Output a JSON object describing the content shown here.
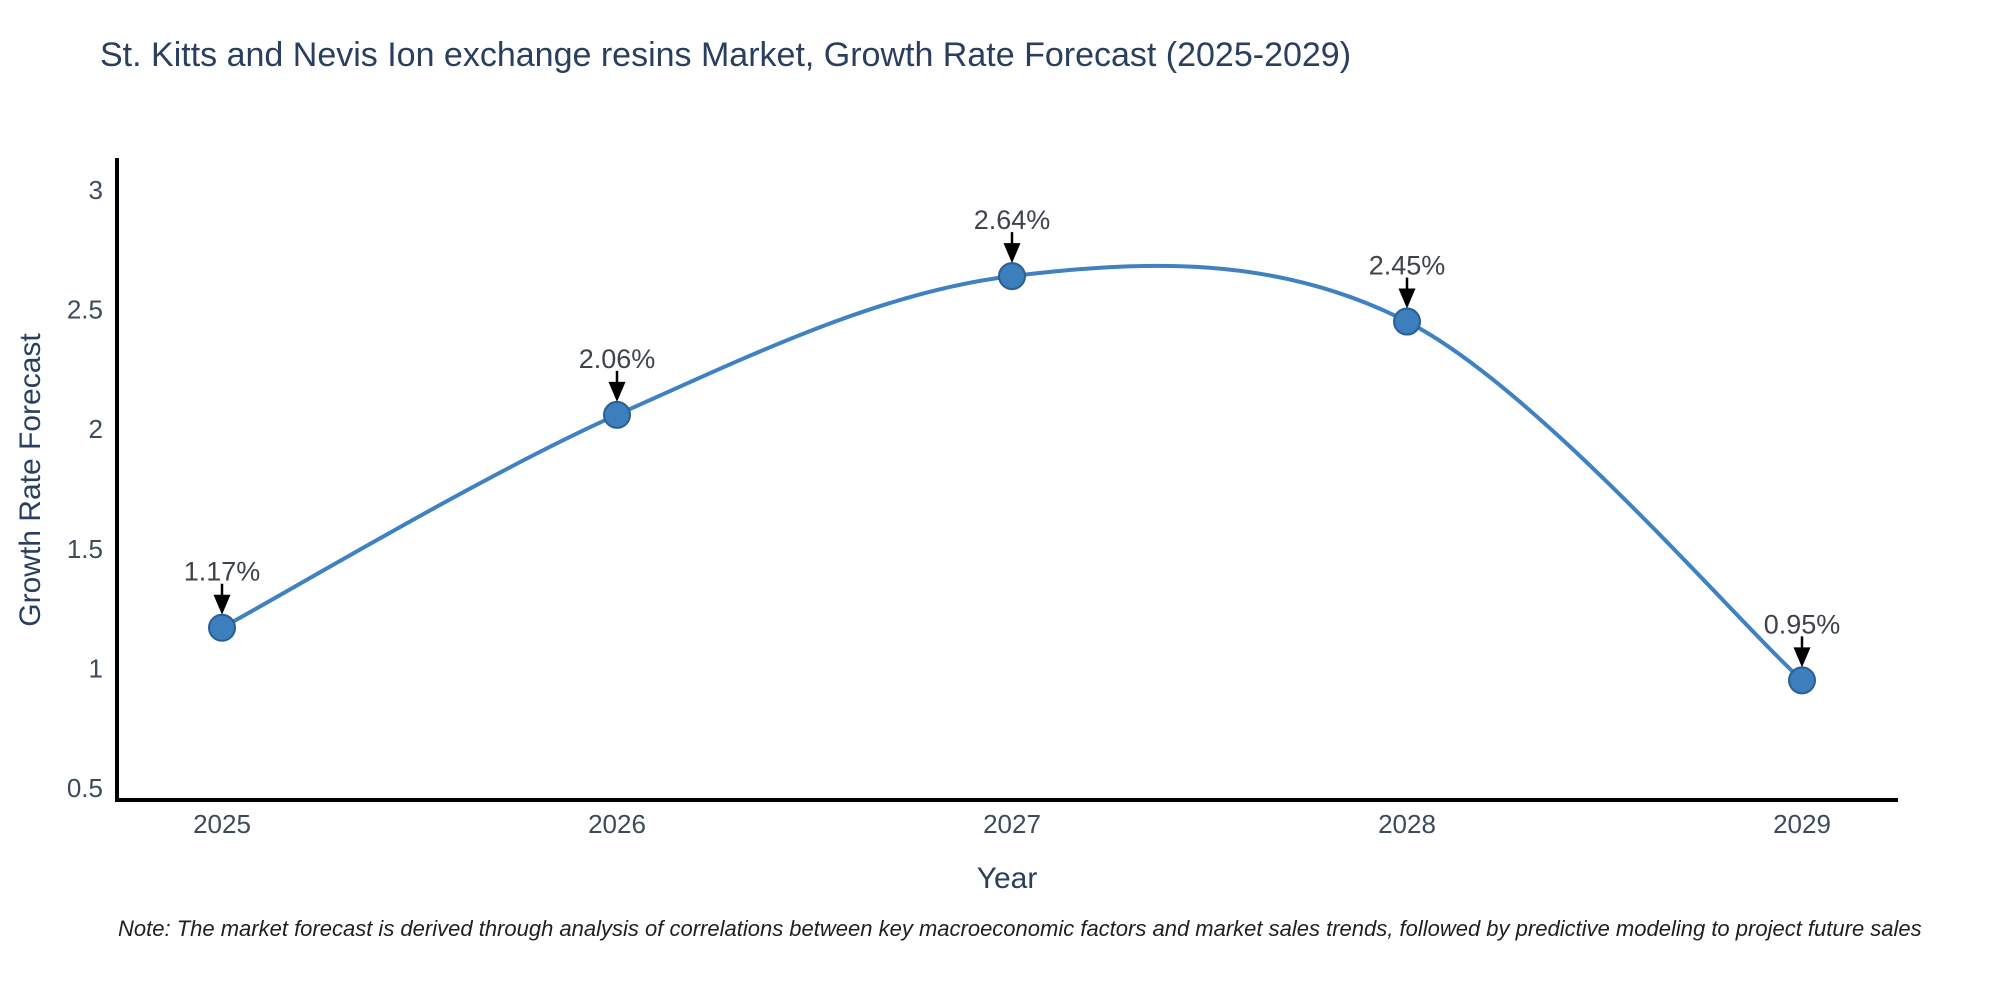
{
  "title": "St. Kitts and Nevis Ion exchange resins Market, Growth Rate Forecast (2025-2029)",
  "note": "Note: The market forecast is derived through analysis of correlations between key macroeconomic factors and market sales trends, followed by predictive modeling to project future sales",
  "chart_data": {
    "type": "line",
    "title": "St. Kitts and Nevis Ion exchange resins Market, Growth Rate Forecast (2025-2029)",
    "xlabel": "Year",
    "ylabel": "Growth Rate Forecast",
    "x": [
      2025,
      2026,
      2027,
      2028,
      2029
    ],
    "y": [
      1.17,
      2.06,
      2.64,
      2.45,
      0.95
    ],
    "point_labels": [
      "1.17%",
      "2.06%",
      "2.64%",
      "2.45%",
      "0.95%"
    ],
    "yticks": [
      0.5,
      1,
      1.5,
      2,
      2.5,
      3
    ],
    "ylim": [
      0.45,
      3.1
    ],
    "line_shape": "spline",
    "grid": false,
    "legend": false,
    "annotations_style": "label-with-down-arrow",
    "colors": {
      "line": "#3f81c1",
      "marker_fill": "#3d7ebd",
      "marker_edge": "#2a5f94",
      "arrow": "#000000",
      "axis": "#000000",
      "tick_text": "#3d4a5c",
      "title_text": "#2a3f5f",
      "annotation_text": "#3e434b"
    }
  }
}
